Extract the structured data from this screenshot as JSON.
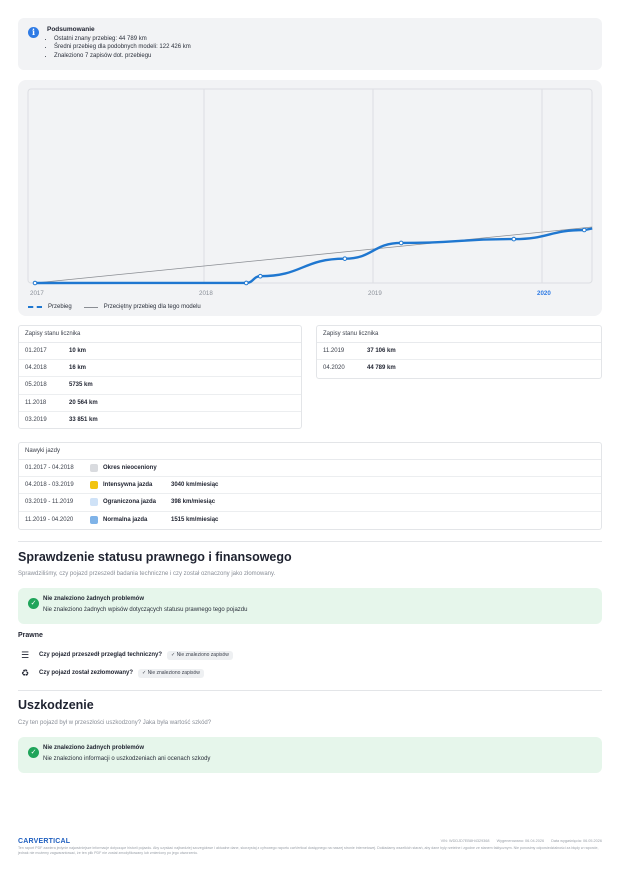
{
  "summary": {
    "title": "Podsumowanie",
    "items": [
      "Ostatni znany przebieg: 44 789 km",
      "Średni przebieg dla podobnych modeli: 122 426 km",
      "Znaleziono 7 zapisów dot. przebiegu"
    ]
  },
  "chart_data": {
    "type": "line",
    "x_ticks": [
      "2017",
      "2018",
      "2019",
      "2020"
    ],
    "highlight_tick": "2020",
    "series": [
      {
        "name": "Przebieg",
        "color": "#1f77d0",
        "points": [
          {
            "x": "01.2017",
            "y": 10
          },
          {
            "x": "04.2018",
            "y": 16
          },
          {
            "x": "05.2018",
            "y": 5735
          },
          {
            "x": "11.2018",
            "y": 20564
          },
          {
            "x": "03.2019",
            "y": 33851
          },
          {
            "x": "11.2019",
            "y": 37106
          },
          {
            "x": "04.2020",
            "y": 44789
          }
        ]
      },
      {
        "name": "Przeciętny przebieg dla tego modelu",
        "color": "#8a8d93",
        "points": [
          {
            "x": "01.2017",
            "y": 0
          },
          {
            "x": "04.2020",
            "y": 44789
          }
        ]
      }
    ],
    "grid": true
  },
  "legend": {
    "series1": "Przebieg",
    "series2": "Przeciętny przebieg dla tego modelu"
  },
  "records_left": {
    "title": "Zapisy stanu licznika",
    "rows": [
      {
        "date": "01.2017",
        "value": "10 km"
      },
      {
        "date": "04.2018",
        "value": "16 km"
      },
      {
        "date": "05.2018",
        "value": "5735 km"
      },
      {
        "date": "11.2018",
        "value": "20 564 km"
      },
      {
        "date": "03.2019",
        "value": "33 851 km"
      }
    ]
  },
  "records_right": {
    "title": "Zapisy stanu licznika",
    "rows": [
      {
        "date": "11.2019",
        "value": "37 106 km"
      },
      {
        "date": "04.2020",
        "value": "44 789 km"
      }
    ]
  },
  "habits": {
    "title": "Nawyki jazdy",
    "rows": [
      {
        "range": "01.2017 - 04.2018",
        "label": "Okres nieoceniony",
        "rate": "",
        "color": "#d9dbdf"
      },
      {
        "range": "04.2018 - 03.2019",
        "label": "Intensywna jazda",
        "rate": "3040 km/miesiąc",
        "color": "#f2c40f"
      },
      {
        "range": "03.2019 - 11.2019",
        "label": "Ograniczona jazda",
        "rate": "398 km/miesiąc",
        "color": "#cfe2f7"
      },
      {
        "range": "11.2019 - 04.2020",
        "label": "Normalna jazda",
        "rate": "1515 km/miesiąc",
        "color": "#7fb3e8"
      }
    ]
  },
  "legal": {
    "title": "Sprawdzenie statusu prawnego i finansowego",
    "subtitle": "Sprawdziliśmy, czy pojazd przeszedł badania techniczne i czy został oznaczony jako złomowany.",
    "ok_title": "Nie znaleziono żadnych problemów",
    "ok_text": "Nie znaleziono żadnych wpisów dotyczących statusu prawnego tego pojazdu",
    "section": "Prawne",
    "q1": "Czy pojazd przeszedł przegląd techniczny?",
    "q1_badge": "✓ Nie znaleziono zapisów",
    "q2": "Czy pojazd został zezłomowany?",
    "q2_badge": "✓ Nie znaleziono zapisów"
  },
  "damage": {
    "title": "Uszkodzenie",
    "subtitle": "Czy ten pojazd był w przeszłości uszkodzony? Jaka była wartość szkód?",
    "ok_title": "Nie znaleziono żadnych problemów",
    "ok_text": "Nie znaleziono informacji o uszkodzeniach ani ocenach szkody"
  },
  "footer": {
    "logo": "CARVERTICAL",
    "vin": "VIN: WDDJD7EB8H4329368",
    "generated": "Wygenerowano: 06.04.2026",
    "expiry": "Data wygaśnięcia: 06.05.2026",
    "text": "Ten raport PDF zawiera jedynie najważniejsze informacje dotyczące historii pojazdu. Aby uzyskać najbardziej szczegółowe i aktualne dane, skorzystaj z cyfrowego raportu carVertical dostępnego na naszej stronie internetowej. Dokładamy wszelkich starań, aby dane były rzetelne i zgodne ze stanem faktycznym. Nie ponosimy odpowiedzialności za błędy w raporcie, jednak nie możemy zagwarantować, że ten plik PDF nie został zmodyfikowany lub zmieniony po jego utworzeniu."
  }
}
